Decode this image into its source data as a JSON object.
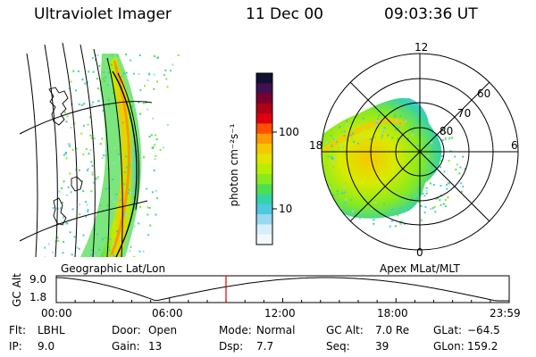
{
  "header": {
    "title": "Ultraviolet Imager",
    "date": "11 Dec 00",
    "time": "09:03:36 UT"
  },
  "panels": {
    "geo_label": "Geographic Lat/Lon",
    "apex_label": "Apex MLat/MLT"
  },
  "colorbar": {
    "unit_label": "photon cm⁻²s⁻¹",
    "ticks": [
      "100",
      "10"
    ],
    "colors": [
      "#111133",
      "#401050",
      "#7a0030",
      "#b00018",
      "#e00010",
      "#ff5000",
      "#ff9a00",
      "#f6c800",
      "#e2e400",
      "#b8ef00",
      "#88ea20",
      "#4fde52",
      "#35d3a8",
      "#50c8e0",
      "#9ad8f0",
      "#d8eefa",
      "#f4f8fc"
    ]
  },
  "polar": {
    "mlt_labels": {
      "top": "12",
      "left": "18",
      "right": "6",
      "bottom": "0"
    },
    "lat_labels": [
      "60",
      "70",
      "80"
    ]
  },
  "timeline": {
    "axis_label": "GC Alt",
    "y_ticks": [
      "9.0",
      "1.8"
    ],
    "x_ticks": [
      "00:00",
      "06:00",
      "12:00",
      "18:00",
      "23:59"
    ],
    "current_marker_color": "#e00000"
  },
  "info": {
    "row1": [
      {
        "k": "Flt:",
        "v": "LBHL"
      },
      {
        "k": "Door:",
        "v": "Open"
      },
      {
        "k": "Mode:",
        "v": "Normal"
      },
      {
        "k": "GC Alt:",
        "v": "7.0 Re"
      },
      {
        "k": "GLat:",
        "v": "−64.5"
      }
    ],
    "row2": [
      {
        "k": "IP:",
        "v": "9.0"
      },
      {
        "k": "Gain:",
        "v": "13"
      },
      {
        "k": "Dsp:",
        "v": "7.7"
      },
      {
        "k": "Seq:",
        "v": "39"
      },
      {
        "k": "GLon:",
        "v": "159.2"
      }
    ]
  }
}
